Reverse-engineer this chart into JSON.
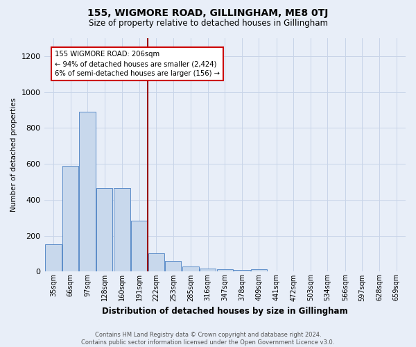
{
  "title": "155, WIGMORE ROAD, GILLINGHAM, ME8 0TJ",
  "subtitle": "Size of property relative to detached houses in Gillingham",
  "xlabel": "Distribution of detached houses by size in Gillingham",
  "ylabel": "Number of detached properties",
  "bar_labels": [
    "35sqm",
    "66sqm",
    "97sqm",
    "128sqm",
    "160sqm",
    "191sqm",
    "222sqm",
    "253sqm",
    "285sqm",
    "316sqm",
    "347sqm",
    "378sqm",
    "409sqm",
    "441sqm",
    "472sqm",
    "503sqm",
    "534sqm",
    "566sqm",
    "597sqm",
    "628sqm",
    "659sqm"
  ],
  "bar_values": [
    152,
    590,
    890,
    465,
    465,
    285,
    103,
    60,
    28,
    18,
    13,
    10,
    15,
    0,
    0,
    0,
    0,
    0,
    0,
    0,
    0
  ],
  "bar_color": "#c8d8ec",
  "bar_edge_color": "#5b8cc8",
  "grid_color": "#c8d4e8",
  "background_color": "#e8eef8",
  "vline_color": "#990000",
  "annotation_text": "155 WIGMORE ROAD: 206sqm\n← 94% of detached houses are smaller (2,424)\n6% of semi-detached houses are larger (156) →",
  "annotation_box_color": "white",
  "annotation_box_edge": "#cc0000",
  "ylim": [
    0,
    1300
  ],
  "yticks": [
    0,
    200,
    400,
    600,
    800,
    1000,
    1200
  ],
  "footnote": "Contains HM Land Registry data © Crown copyright and database right 2024.\nContains public sector information licensed under the Open Government Licence v3.0.",
  "bin_width": 31,
  "vline_sqm": 206
}
